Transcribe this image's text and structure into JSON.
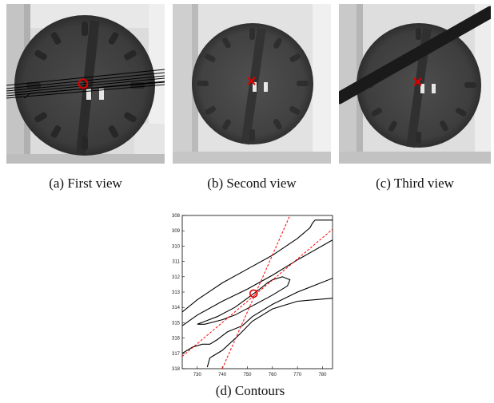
{
  "figure": {
    "panels": [
      {
        "id": "a",
        "caption": "(a)  First view",
        "marker": "circle",
        "overlay": "epipolar-line-bundle"
      },
      {
        "id": "b",
        "caption": "(b)  Second view",
        "marker": "cross",
        "overlay": "none"
      },
      {
        "id": "c",
        "caption": "(c)  Third view",
        "marker": "cross",
        "overlay": "dark-diagonal-bar"
      }
    ],
    "contours": {
      "caption": "(d)  Contours",
      "marker": "circle",
      "colors": {
        "contour": "#000000",
        "epipolar": "#ff0000",
        "marker": "#e00000"
      }
    }
  },
  "chart_data": {
    "type": "line",
    "title": "",
    "xlabel": "",
    "ylabel": "",
    "xlim": [
      724,
      784
    ],
    "ylim": [
      318,
      308
    ],
    "xticks": [
      "730",
      "740",
      "750",
      "760",
      "770",
      "780"
    ],
    "yticks": [
      "308",
      "309",
      "310",
      "311",
      "312",
      "313",
      "314",
      "315",
      "316",
      "317",
      "318"
    ],
    "series": [
      {
        "style": "solid",
        "x": [
          724,
          730,
          740,
          750,
          760,
          770,
          775,
          776,
          777,
          784
        ],
        "y": [
          314.3,
          313.5,
          312.4,
          311.5,
          310.6,
          309.5,
          308.8,
          308.5,
          308.3,
          308.3
        ]
      },
      {
        "style": "solid",
        "x": [
          724,
          730,
          740,
          750,
          760,
          770,
          784
        ],
        "y": [
          315.2,
          314.5,
          313.6,
          312.8,
          311.9,
          310.9,
          309.6
        ]
      },
      {
        "style": "solid",
        "x": [
          730,
          738,
          745,
          750,
          755,
          758,
          760,
          764,
          767,
          766,
          760,
          752,
          745,
          740,
          733,
          730
        ],
        "y": [
          315.1,
          314.6,
          314.0,
          313.4,
          312.8,
          312.4,
          312.2,
          312.0,
          312.2,
          312.6,
          313.2,
          313.9,
          314.5,
          314.8,
          315.1,
          315.1
        ]
      },
      {
        "style": "solid",
        "x": [
          724,
          728,
          732,
          735,
          738,
          742,
          748,
          752,
          760,
          770,
          784
        ],
        "y": [
          317.0,
          316.6,
          316.4,
          316.4,
          316.1,
          315.6,
          315.2,
          314.6,
          313.8,
          313.0,
          312.1
        ]
      },
      {
        "style": "solid",
        "x": [
          734,
          735,
          736,
          740,
          746,
          752,
          760,
          770,
          784
        ],
        "y": [
          317.9,
          317.3,
          317.2,
          316.8,
          315.9,
          314.9,
          314.1,
          313.6,
          313.4
        ]
      },
      {
        "style": "dashed",
        "x": [
          724,
          784
        ],
        "y": [
          317.2,
          308.9
        ]
      },
      {
        "style": "dashed",
        "x": [
          740,
          767
        ],
        "y": [
          318.0,
          308.0
        ]
      }
    ],
    "points": [
      {
        "label": "",
        "x": 752.5,
        "y": 313.1
      }
    ],
    "grid": false,
    "legend": "none"
  }
}
